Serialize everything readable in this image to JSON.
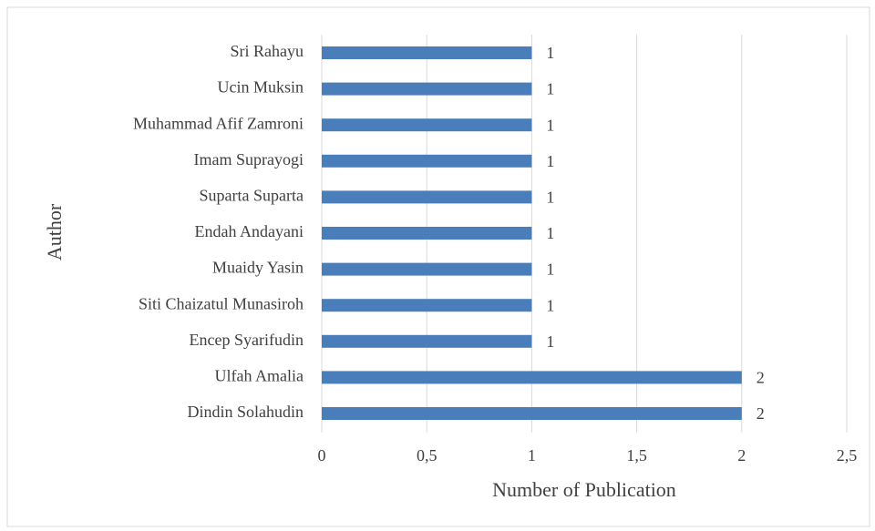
{
  "chart_data": {
    "type": "bar",
    "orientation": "horizontal",
    "categories": [
      "Sri Rahayu",
      "Ucin Muksin",
      "Muhammad Afif Zamroni",
      "Imam Suprayogi",
      "Suparta Suparta",
      "Endah Andayani",
      "Muaidy Yasin",
      "Siti Chaizatul Munasiroh",
      "Encep Syarifudin",
      "Ulfah Amalia",
      "Dindin Solahudin"
    ],
    "values": [
      1,
      1,
      1,
      1,
      1,
      1,
      1,
      1,
      1,
      2,
      2
    ],
    "color": "#4a7ebb",
    "xlabel": "Number of Publication",
    "ylabel": "Author",
    "xlim": [
      0,
      2.5
    ],
    "xticks": [
      0,
      {
        "value": 0.5,
        "label": "0,5"
      },
      1,
      {
        "value": 1.5,
        "label": "1,5"
      },
      2,
      {
        "value": 2.5,
        "label": "2,5"
      }
    ],
    "grid": true
  }
}
